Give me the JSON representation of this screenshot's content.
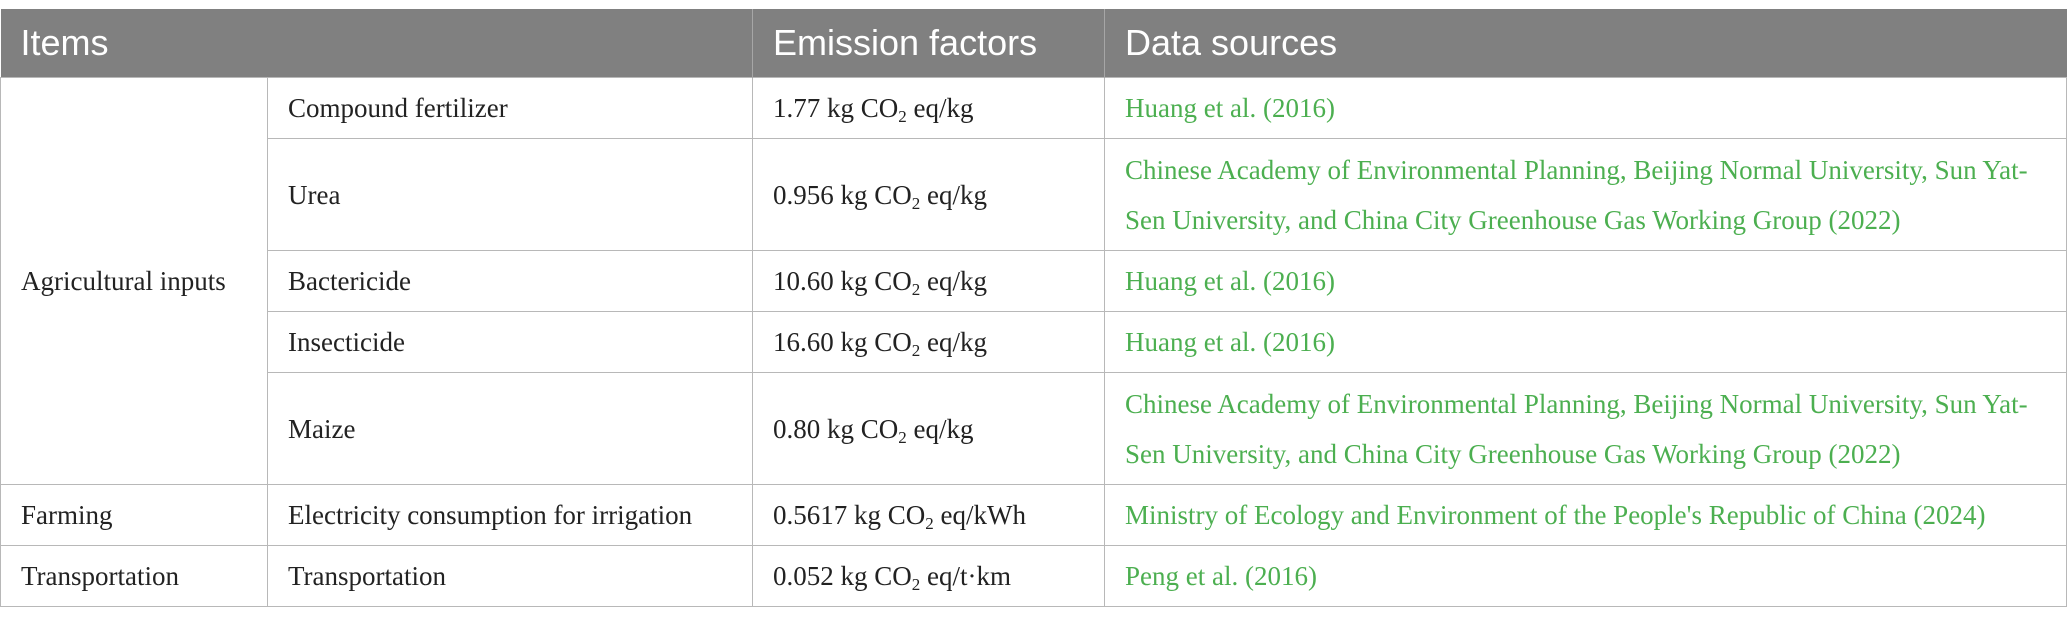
{
  "header": {
    "items": "Items",
    "emission_factors": "Emission factors",
    "data_sources": "Data sources"
  },
  "unit": {
    "co2_prefix": "CO",
    "co2_sub": "2"
  },
  "groups": {
    "agricultural_inputs": "Agricultural inputs",
    "farming": "Farming",
    "transportation": "Transportation"
  },
  "rows": [
    {
      "item": "Compound fertilizer",
      "value": "1.77 kg",
      "unit_suffix": "eq/kg",
      "source": "Huang et al. (2016)"
    },
    {
      "item": "Urea",
      "value": "0.956 kg",
      "unit_suffix": "eq/kg",
      "source": "Chinese Academy of Environmental Planning, Beijing Normal University, Sun Yat-Sen University, and China City Greenhouse Gas Working Group (2022)"
    },
    {
      "item": "Bactericide",
      "value": "10.60 kg",
      "unit_suffix": "eq/kg",
      "source": "Huang et al. (2016)"
    },
    {
      "item": "Insecticide",
      "value": "16.60 kg",
      "unit_suffix": "eq/kg",
      "source": "Huang et al. (2016)"
    },
    {
      "item": "Maize",
      "value": "0.80 kg",
      "unit_suffix": "eq/kg",
      "source": "Chinese Academy of Environmental Planning, Beijing Normal University, Sun Yat-Sen University, and China City Greenhouse Gas Working Group (2022)"
    },
    {
      "item": "Electricity consumption for irrigation",
      "value": "0.5617 kg",
      "unit_suffix": "eq/kWh",
      "source": "Ministry of Ecology and Environment of the People's Republic of China (2024)"
    },
    {
      "item": "Transportation",
      "value": "0.052 kg",
      "unit_suffix": "eq/t·km",
      "source": "Peng et al. (2016)"
    }
  ],
  "colors": {
    "header_bg": "#808080",
    "header_text": "#ffffff",
    "source_link": "#4caf50",
    "border": "#b8b8b8"
  }
}
